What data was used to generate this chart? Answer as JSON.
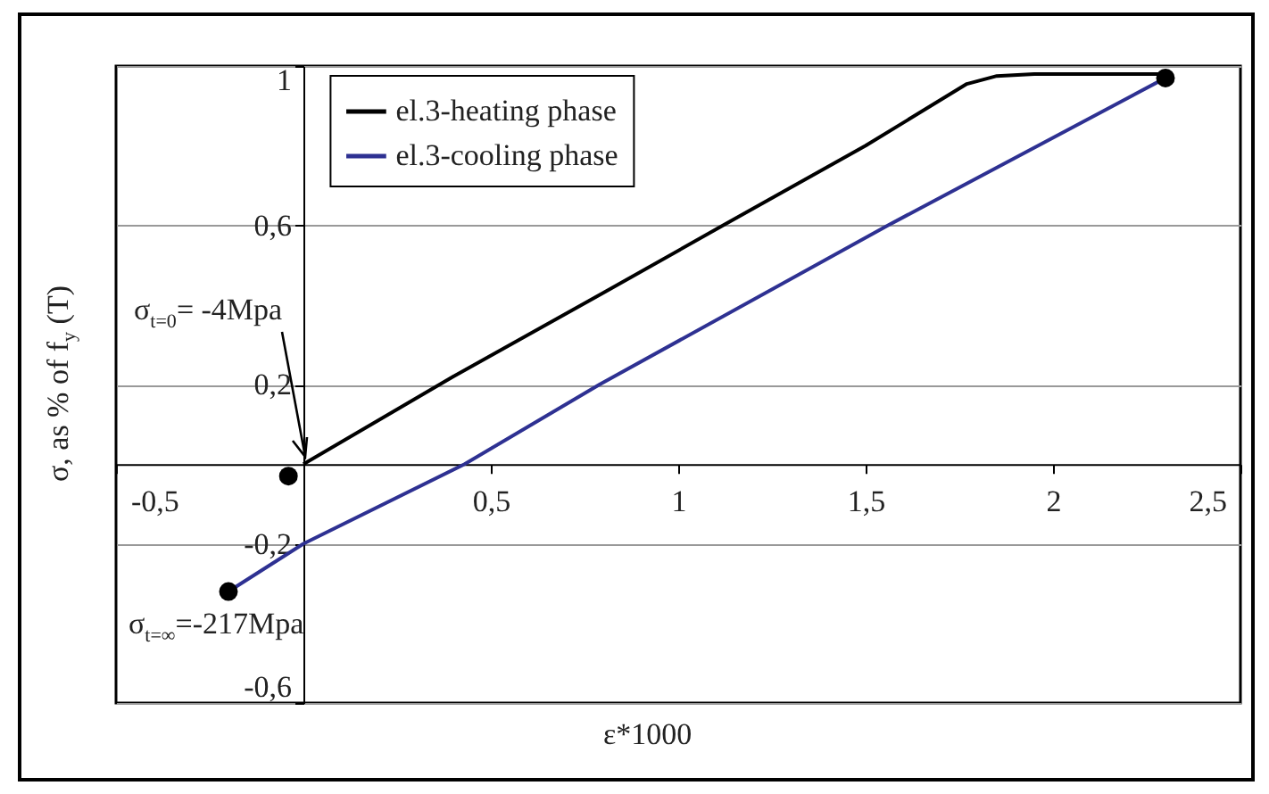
{
  "chart_data": {
    "type": "line",
    "xlabel": "ε*1000",
    "ylabel": "σ, as % of f$_{y}$ (T)",
    "xlim": [
      -0.5,
      2.5
    ],
    "ylim": [
      -0.6,
      1
    ],
    "xticks": [
      {
        "value": -0.5,
        "label": "-0,5"
      },
      {
        "value": 0.5,
        "label": "0,5"
      },
      1,
      {
        "value": 1.5,
        "label": "1,5"
      },
      2,
      {
        "value": 2.5,
        "label": "2,5"
      }
    ],
    "yticks": [
      {
        "value": -0.6,
        "label": "-0,6"
      },
      {
        "value": -0.2,
        "label": "-0,2"
      },
      {
        "value": 0.2,
        "label": "0,2"
      },
      {
        "value": 0.6,
        "label": "0,6"
      },
      1
    ],
    "grid": "y",
    "legend": "top left",
    "marker": "none",
    "series": [
      {
        "name": "el.3-heating phase",
        "color": "#000000",
        "x": [
          0,
          0.4,
          0.8,
          1.12,
          1.5,
          1.77,
          1.85,
          1.95,
          2.3
        ],
        "values": [
          0,
          0.22,
          0.43,
          0.6,
          0.8,
          0.955,
          0.975,
          0.98,
          0.98
        ]
      },
      {
        "name": "el.3-cooling phase",
        "color": "#2e3192",
        "x": [
          2.3,
          1.56,
          0.79,
          0.43,
          0,
          -0.2
        ],
        "values": [
          0.97,
          0.6,
          0.2,
          0,
          -0.2,
          -0.32
        ]
      },
      {
        "type": "scatter",
        "marker": "circle",
        "color": "#000000",
        "x": [
          -0.04,
          -0.2,
          2.3
        ],
        "values": [
          -0.03,
          -0.32,
          0.97
        ]
      }
    ],
    "annotations": [
      {
        "text": "σ$_{t=0}$= -4Mpa",
        "x": 0,
        "y": 0
      },
      {
        "text": "σ$_{t=∞}$=-217Mpa",
        "x": -0.2,
        "y": -0.32
      }
    ]
  }
}
